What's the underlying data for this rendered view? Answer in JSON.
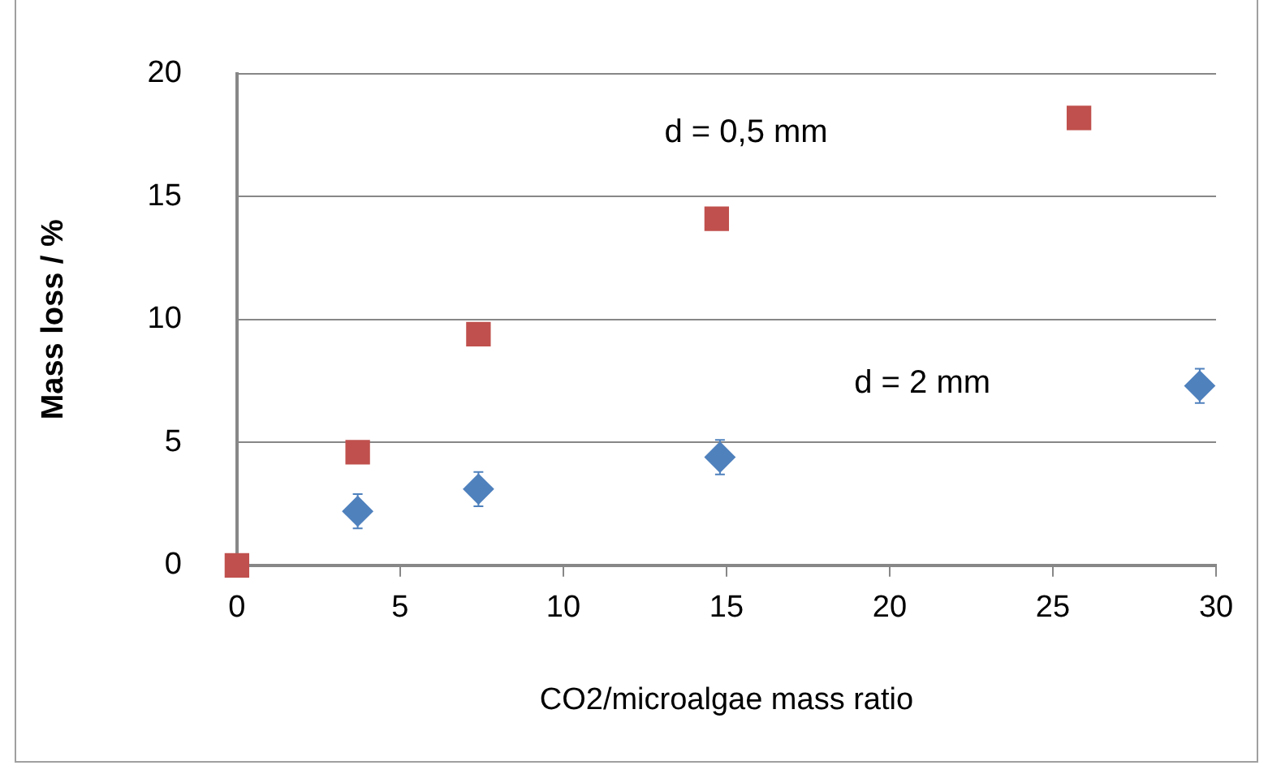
{
  "chart_data": {
    "type": "scatter",
    "xlabel": "CO2/microalgae mass ratio",
    "ylabel": "Mass loss / %",
    "xlim": [
      0,
      30
    ],
    "xticks": [
      0,
      5,
      10,
      15,
      20,
      25,
      30
    ],
    "ylim": [
      0,
      20
    ],
    "yticks": [
      0,
      5,
      10,
      15,
      20
    ],
    "grid": "y",
    "legend": false,
    "annotations": [
      "d = 0,5 mm",
      "d = 2 mm"
    ],
    "series": [
      {
        "color": "#c0504d",
        "marker": "square",
        "x": [
          0,
          3.7,
          7.4,
          14.7,
          25.8
        ],
        "values": [
          0,
          4.6,
          9.4,
          14.1,
          18.2
        ]
      },
      {
        "color": "#4f81bd",
        "marker": "diamond",
        "x": [
          3.7,
          7.4,
          14.8,
          29.5
        ],
        "values": [
          2.2,
          3.1,
          4.4,
          7.3
        ],
        "errors": [
          0.7,
          0.7,
          0.7,
          0.7
        ]
      }
    ]
  }
}
